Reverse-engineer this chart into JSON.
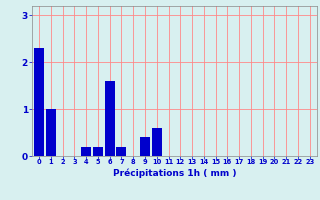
{
  "values": [
    2.3,
    1.0,
    0,
    0,
    0.2,
    0.2,
    1.6,
    0.2,
    0,
    0.4,
    0.6,
    0,
    0,
    0,
    0,
    0,
    0,
    0,
    0,
    0,
    0,
    0,
    0,
    0
  ],
  "categories": [
    0,
    1,
    2,
    3,
    4,
    5,
    6,
    7,
    8,
    9,
    10,
    11,
    12,
    13,
    14,
    15,
    16,
    17,
    18,
    19,
    20,
    21,
    22,
    23
  ],
  "bar_color": "#0000cc",
  "background_color": "#d8f0f0",
  "grid_color": "#ff8888",
  "xlabel": "Précipitations 1h ( mm )",
  "xlabel_color": "#0000cc",
  "ylabel_color": "#0000cc",
  "tick_color": "#0000cc",
  "ylim": [
    0,
    3.2
  ],
  "yticks": [
    0,
    1,
    2,
    3
  ],
  "bar_width": 0.85,
  "figsize": [
    3.2,
    2.0
  ],
  "dpi": 100
}
